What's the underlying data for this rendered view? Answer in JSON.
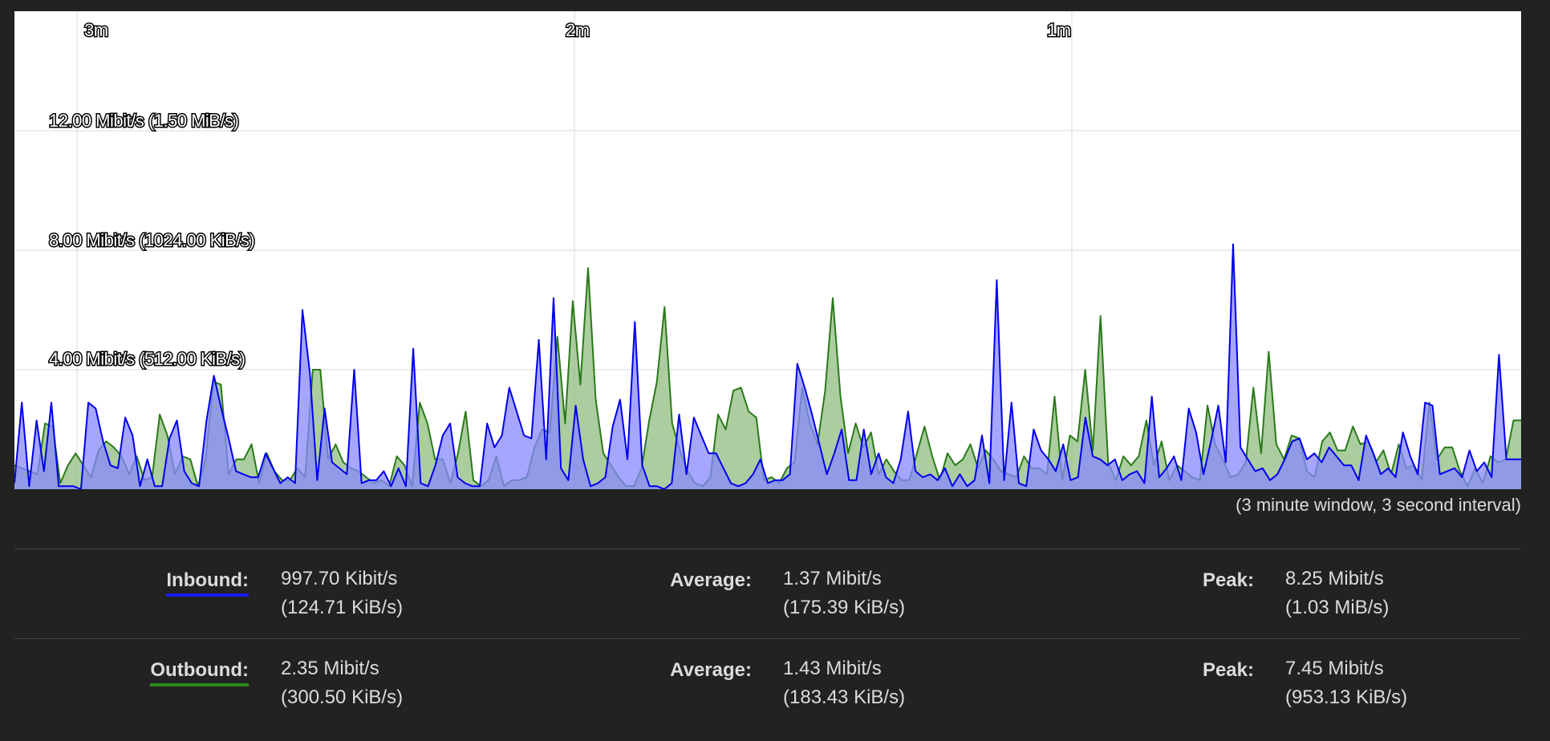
{
  "graph": {
    "time_labels": [
      "3m",
      "2m",
      "1m"
    ],
    "y_labels": [
      "12.00 Mibit/s (1.50 MiB/s)",
      "8.00 Mibit/s (1024.00 KiB/s)",
      "4.00 Mibit/s (512.00 KiB/s)"
    ],
    "window_note": "(3 minute window, 3 second interval)"
  },
  "chart_data": {
    "type": "area",
    "x_unit": "seconds ago",
    "y_unit": "Mibit/s",
    "ylim": [
      0,
      16
    ],
    "yticks": [
      4,
      8,
      12
    ],
    "xticks": [
      180,
      120,
      60
    ],
    "grid": true,
    "series": [
      {
        "name": "Inbound",
        "color": "#0000ee",
        "fill": "#8888ff",
        "values": [
          0.2,
          2.9,
          0.1,
          2.3,
          0.6,
          2.9,
          0.1,
          0.1,
          0.1,
          0.0,
          2.9,
          2.7,
          1.6,
          0.8,
          0.7,
          2.4,
          1.8,
          0.1,
          1.0,
          0.1,
          0.1,
          1.7,
          2.3,
          0.6,
          0.2,
          0.1,
          2.3,
          3.8,
          2.7,
          1.7,
          0.6,
          0.5,
          0.4,
          0.4,
          1.2,
          0.7,
          0.2,
          0.4,
          0.2,
          6.0,
          3.9,
          0.3,
          2.7,
          0.9,
          0.7,
          0.5,
          4.0,
          0.2,
          0.3,
          0.3,
          0.6,
          0.1,
          0.7,
          0.1,
          4.7,
          0.2,
          0.1,
          0.8,
          1.8,
          2.2,
          0.4,
          0.2,
          0.1,
          0.1,
          2.2,
          1.4,
          1.8,
          3.4,
          2.6,
          1.8,
          1.7,
          5.0,
          1.0,
          6.4,
          0.7,
          0.3,
          2.8,
          1.0,
          0.1,
          0.2,
          0.4,
          2.1,
          3.0,
          1.0,
          5.6,
          0.8,
          0.1,
          0.1,
          0.0,
          0.2,
          2.5,
          0.5,
          2.4,
          1.8,
          1.2,
          1.2,
          0.7,
          0.2,
          0.1,
          0.2,
          0.5,
          1.0,
          0.2,
          0.3,
          0.3,
          0.5,
          4.2,
          3.4,
          2.5,
          1.5,
          0.5,
          1.2,
          2.0,
          0.3,
          0.3,
          2.0,
          0.5,
          1.2,
          0.4,
          0.2,
          1.0,
          2.6,
          0.6,
          0.4,
          0.5,
          0.3,
          0.7,
          0.1,
          0.5,
          0.1,
          0.3,
          1.8,
          0.2,
          7.0,
          0.3,
          2.9,
          0.2,
          0.1,
          2.0,
          1.3,
          1.0,
          0.6,
          1.5,
          0.3,
          0.4,
          2.4,
          1.1,
          1.0,
          0.8,
          1.0,
          0.3,
          0.5,
          0.6,
          0.2,
          3.1,
          0.4,
          0.7,
          1.1,
          0.3,
          2.7,
          1.9,
          0.5,
          1.6,
          2.8,
          0.9,
          8.2,
          1.4,
          1.0,
          0.6,
          0.7,
          0.3,
          0.5,
          1.0,
          1.6,
          1.7,
          1.0,
          1.2,
          0.9,
          1.4,
          1.1,
          0.8,
          0.8,
          0.3,
          1.8,
          1.2,
          0.5,
          0.7,
          0.4,
          1.9,
          1.1,
          0.5,
          2.9,
          2.8,
          0.5,
          0.6,
          0.7,
          0.4,
          1.3,
          0.6,
          0.9,
          0.4,
          4.5,
          1.0,
          1.0,
          1.0
        ]
      },
      {
        "name": "Outbound",
        "color": "#2a7a1a",
        "fill": "#8fbc7f",
        "values": [
          0.8,
          0.7,
          0.6,
          0.5,
          2.2,
          2.1,
          0.2,
          0.8,
          1.2,
          0.8,
          0.4,
          1.3,
          1.6,
          1.4,
          1.1,
          0.5,
          1.1,
          0.3,
          0.4,
          2.5,
          1.8,
          0.5,
          1.1,
          1.0,
          0.1,
          1.0,
          3.6,
          3.5,
          0.5,
          1.0,
          1.0,
          1.5,
          0.2,
          1.2,
          0.6,
          0.3,
          0.3,
          0.7,
          0.4,
          4.0,
          4.0,
          1.0,
          1.5,
          0.9,
          0.7,
          0.6,
          0.4,
          0.2,
          0.3,
          0.1,
          1.1,
          0.8,
          0.1,
          2.9,
          2.2,
          1.0,
          1.0,
          0.2,
          1.2,
          2.6,
          0.3,
          0.1,
          0.3,
          1.1,
          0.1,
          0.3,
          0.3,
          0.4,
          1.4,
          2.0,
          1.9,
          5.1,
          2.2,
          6.3,
          3.5,
          7.4,
          3.0,
          1.2,
          0.8,
          0.4,
          0.1,
          0.1,
          0.7,
          2.3,
          3.6,
          6.1,
          2.2,
          1.3,
          0.6,
          0.2,
          0.1,
          0.4,
          2.5,
          2.0,
          3.3,
          3.4,
          2.6,
          2.4,
          0.3,
          0.4,
          0.2,
          0.7,
          0.9,
          3.4,
          2.2,
          1.5,
          3.3,
          6.4,
          3.1,
          1.2,
          2.2,
          1.4,
          1.9,
          0.5,
          1.0,
          0.6,
          0.3,
          0.3,
          1.2,
          2.1,
          1.1,
          0.3,
          1.2,
          0.8,
          1.0,
          1.5,
          0.7,
          1.3,
          1.0,
          0.6,
          0.5,
          0.4,
          1.1,
          0.7,
          0.7,
          0.5,
          3.1,
          0.3,
          1.8,
          1.6,
          4.0,
          1.3,
          5.8,
          0.9,
          0.3,
          1.1,
          0.8,
          1.1,
          2.3,
          0.8,
          1.6,
          0.3,
          0.8,
          0.6,
          0.4,
          0.3,
          2.8,
          1.5,
          1.0,
          0.4,
          0.5,
          0.9,
          3.4,
          1.2,
          4.6,
          1.5,
          1.0,
          1.8,
          1.7,
          0.6,
          0.4,
          1.6,
          1.9,
          1.3,
          1.3,
          2.1,
          1.5,
          1.6,
          0.9,
          1.3,
          0.5,
          1.5,
          0.7,
          0.8,
          0.3,
          2.9,
          1.0,
          1.4,
          1.4,
          0.6,
          0.1,
          0.7,
          0.2,
          1.1,
          0.9,
          1.0,
          2.3,
          2.3
        ]
      }
    ]
  },
  "legend": {
    "inbound": {
      "label": "Inbound:",
      "current_line1": "997.70 Kibit/s",
      "current_line2": "(124.71 KiB/s)",
      "average_label": "Average:",
      "average_line1": "1.37 Mibit/s",
      "average_line2": "(175.39 KiB/s)",
      "peak_label": "Peak:",
      "peak_line1": "8.25 Mibit/s",
      "peak_line2": "(1.03 MiB/s)",
      "underline_color": "#1a1aff"
    },
    "outbound": {
      "label": "Outbound:",
      "current_line1": "2.35 Mibit/s",
      "current_line2": "(300.50 KiB/s)",
      "average_label": "Average:",
      "average_line1": "1.43 Mibit/s",
      "average_line2": "(183.43 KiB/s)",
      "peak_label": "Peak:",
      "peak_line1": "7.45 Mibit/s",
      "peak_line2": "(953.13 KiB/s)",
      "underline_color": "#2e8b1e"
    }
  }
}
